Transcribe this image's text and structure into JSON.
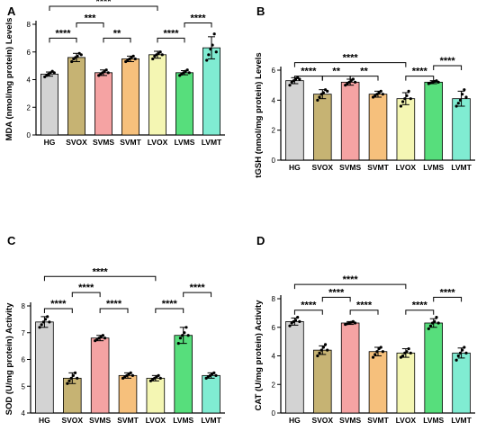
{
  "colors": [
    "#d3d3d3",
    "#c6b373",
    "#f5a3a3",
    "#f6c07c",
    "#f4f6b3",
    "#57de7c",
    "#80ecd2"
  ],
  "chart_data": [
    {
      "panel": "A",
      "type": "bar",
      "ylabel": "MDA (nmol/mg protein) Levels",
      "categories": [
        "HG",
        "SVOX",
        "SVMS",
        "SVMT",
        "LVOX",
        "LVMS",
        "LVMT"
      ],
      "values": [
        4.4,
        5.6,
        4.5,
        5.5,
        5.8,
        4.5,
        6.3
      ],
      "errors": [
        0.15,
        0.3,
        0.2,
        0.2,
        0.25,
        0.15,
        0.8
      ],
      "points": [
        [
          4.2,
          4.3,
          4.4,
          4.5,
          4.6,
          4.5
        ],
        [
          5.3,
          5.5,
          5.6,
          5.7,
          5.9,
          5.8
        ],
        [
          4.3,
          4.4,
          4.5,
          4.6,
          4.7,
          4.5
        ],
        [
          5.3,
          5.4,
          5.5,
          5.6,
          5.7,
          5.5
        ],
        [
          5.5,
          5.7,
          5.8,
          5.9,
          6.0,
          5.8
        ],
        [
          4.3,
          4.4,
          4.5,
          4.6,
          4.7,
          4.5
        ],
        [
          5.4,
          5.8,
          6.2,
          6.5,
          7.3,
          6.0
        ]
      ],
      "ylim": [
        0,
        8
      ],
      "yticks": [
        "0",
        "2",
        "4",
        "6",
        "8"
      ],
      "brackets": [
        {
          "from": 0,
          "to": 4,
          "y": 9.3,
          "label": "****"
        },
        {
          "from": 0,
          "to": 1,
          "y": 7.0,
          "label": "****"
        },
        {
          "from": 1,
          "to": 2,
          "y": 8.1,
          "label": "***"
        },
        {
          "from": 2,
          "to": 3,
          "y": 7.0,
          "label": "**"
        },
        {
          "from": 4,
          "to": 5,
          "y": 7.0,
          "label": "****"
        },
        {
          "from": 5,
          "to": 6,
          "y": 8.1,
          "label": "****"
        }
      ]
    },
    {
      "panel": "B",
      "type": "bar",
      "ylabel": "tGSH (nmol/mg protein) Levels",
      "categories": [
        "HG",
        "SVOX",
        "SVMS",
        "SVMT",
        "LVOX",
        "LVMS",
        "LVMT"
      ],
      "values": [
        5.3,
        4.4,
        5.2,
        4.4,
        4.1,
        5.2,
        4.1
      ],
      "errors": [
        0.2,
        0.3,
        0.2,
        0.2,
        0.4,
        0.1,
        0.5
      ],
      "points": [
        [
          5.0,
          5.2,
          5.3,
          5.4,
          5.5,
          5.4
        ],
        [
          4.0,
          4.2,
          4.4,
          4.5,
          4.7,
          4.6
        ],
        [
          5.0,
          5.1,
          5.2,
          5.3,
          5.4,
          5.2
        ],
        [
          4.2,
          4.3,
          4.4,
          4.5,
          4.6,
          4.4
        ],
        [
          3.6,
          3.9,
          4.1,
          4.3,
          4.6,
          4.1
        ],
        [
          5.1,
          5.15,
          5.2,
          5.25,
          5.3,
          5.2
        ],
        [
          3.6,
          3.8,
          4.0,
          4.4,
          4.7,
          4.2
        ]
      ],
      "ylim": [
        0,
        6
      ],
      "yticks": [
        "0",
        "2",
        "4",
        "6"
      ],
      "brackets": [
        {
          "from": 0,
          "to": 4,
          "y": 6.5,
          "label": "****"
        },
        {
          "from": 0,
          "to": 1,
          "y": 5.6,
          "label": "****"
        },
        {
          "from": 1,
          "to": 2,
          "y": 5.6,
          "label": "**"
        },
        {
          "from": 2,
          "to": 3,
          "y": 5.6,
          "label": "**"
        },
        {
          "from": 4,
          "to": 5,
          "y": 5.6,
          "label": "****"
        },
        {
          "from": 5,
          "to": 6,
          "y": 6.3,
          "label": "****"
        }
      ]
    },
    {
      "panel": "C",
      "type": "bar",
      "ylabel": "SOD (U/mg protein) Activity",
      "categories": [
        "HG",
        "SVOX",
        "SVMS",
        "SVMT",
        "LVOX",
        "LVMS",
        "LVMT"
      ],
      "values": [
        7.4,
        5.3,
        6.8,
        5.4,
        5.3,
        6.9,
        5.4
      ],
      "errors": [
        0.2,
        0.2,
        0.1,
        0.1,
        0.1,
        0.3,
        0.1
      ],
      "points": [
        [
          7.2,
          7.3,
          7.4,
          7.5,
          7.6,
          7.4
        ],
        [
          5.1,
          5.2,
          5.3,
          5.4,
          5.5,
          5.3
        ],
        [
          6.7,
          6.75,
          6.8,
          6.85,
          6.9,
          6.8
        ],
        [
          5.3,
          5.35,
          5.4,
          5.45,
          5.5,
          5.4
        ],
        [
          5.2,
          5.25,
          5.3,
          5.35,
          5.4,
          5.3
        ],
        [
          6.6,
          6.8,
          6.9,
          7.0,
          7.2,
          6.9
        ],
        [
          5.3,
          5.35,
          5.4,
          5.45,
          5.5,
          5.4
        ]
      ],
      "ylim": [
        4,
        8
      ],
      "yticks": [
        "4",
        "5",
        "6",
        "7",
        "8"
      ],
      "brackets": [
        {
          "from": 0,
          "to": 4,
          "y": 9.1,
          "label": "****"
        },
        {
          "from": 0,
          "to": 1,
          "y": 7.9,
          "label": "****"
        },
        {
          "from": 1,
          "to": 2,
          "y": 8.5,
          "label": "****"
        },
        {
          "from": 2,
          "to": 3,
          "y": 7.9,
          "label": "****"
        },
        {
          "from": 4,
          "to": 5,
          "y": 7.9,
          "label": "****"
        },
        {
          "from": 5,
          "to": 6,
          "y": 8.5,
          "label": "****"
        }
      ]
    },
    {
      "panel": "D",
      "type": "bar",
      "ylabel": "CAT (U/mg protein) Activity",
      "categories": [
        "HG",
        "SVOX",
        "SVMS",
        "SVMT",
        "LVOX",
        "LVMS",
        "LVMT"
      ],
      "values": [
        6.4,
        4.4,
        6.3,
        4.3,
        4.2,
        6.3,
        4.2
      ],
      "errors": [
        0.25,
        0.3,
        0.1,
        0.3,
        0.3,
        0.3,
        0.35
      ],
      "points": [
        [
          6.1,
          6.3,
          6.4,
          6.5,
          6.7,
          6.4
        ],
        [
          4.0,
          4.2,
          4.4,
          4.6,
          4.8,
          4.4
        ],
        [
          6.2,
          6.25,
          6.3,
          6.35,
          6.4,
          6.3
        ],
        [
          3.9,
          4.1,
          4.3,
          4.5,
          4.6,
          4.3
        ],
        [
          3.9,
          4.0,
          4.2,
          4.3,
          4.5,
          4.2
        ],
        [
          5.9,
          6.1,
          6.3,
          6.4,
          6.7,
          6.3
        ],
        [
          3.7,
          4.0,
          4.2,
          4.4,
          4.6,
          4.2
        ]
      ],
      "ylim": [
        0,
        8
      ],
      "yticks": [
        "0",
        "2",
        "4",
        "6",
        "8"
      ],
      "brackets": [
        {
          "from": 0,
          "to": 4,
          "y": 9.0,
          "label": "****"
        },
        {
          "from": 0,
          "to": 1,
          "y": 7.2,
          "label": "****"
        },
        {
          "from": 1,
          "to": 2,
          "y": 8.1,
          "label": "****"
        },
        {
          "from": 2,
          "to": 3,
          "y": 7.2,
          "label": "****"
        },
        {
          "from": 4,
          "to": 5,
          "y": 7.2,
          "label": "****"
        },
        {
          "from": 5,
          "to": 6,
          "y": 8.1,
          "label": "****"
        }
      ]
    }
  ]
}
